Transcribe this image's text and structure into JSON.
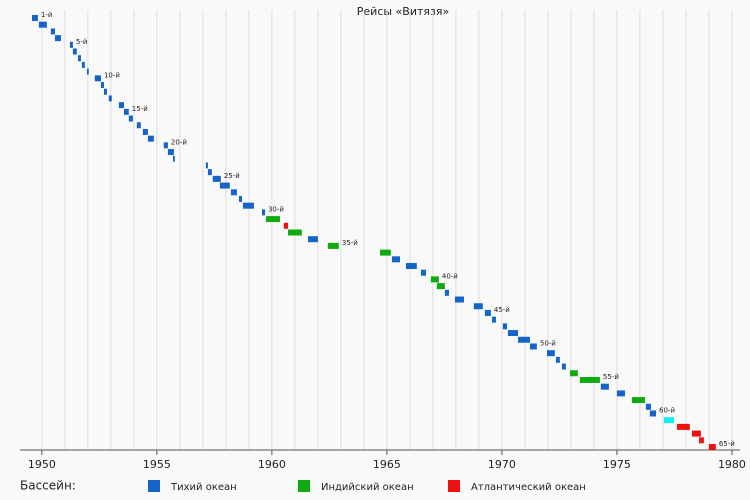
{
  "chart_data": {
    "type": "timeline",
    "title": "Рейсы «Витязя»",
    "categories": [
      "1-й",
      null,
      null,
      null,
      "5-й",
      null,
      null,
      null,
      null,
      "10-й",
      null,
      null,
      null,
      null,
      "15-й",
      null,
      null,
      null,
      null,
      "20-й",
      null,
      null,
      null,
      null,
      "25-й",
      null,
      null,
      null,
      null,
      "30-й",
      null,
      null,
      null,
      null,
      "35-й",
      null,
      null,
      null,
      null,
      "40-й",
      null,
      null,
      null,
      null,
      "45-й",
      null,
      null,
      null,
      null,
      "50-й",
      null,
      null,
      null,
      null,
      "55-й",
      null,
      null,
      null,
      null,
      "60-й",
      null,
      null,
      null,
      null,
      "65-й"
    ],
    "start": [
      1949.57,
      1949.87,
      1950.39,
      1950.57,
      1951.22,
      1951.35,
      1951.57,
      1951.74,
      1951.96,
      1952.3,
      1952.57,
      1952.7,
      1952.91,
      1953.35,
      1953.57,
      1953.78,
      1954.13,
      1954.39,
      1954.61,
      1955.3,
      1955.48,
      1955.7,
      1957.13,
      1957.22,
      1957.43,
      1957.74,
      1958.22,
      1958.57,
      1958.74,
      1959.57,
      1959.74,
      1960.52,
      1960.7,
      1961.57,
      1962.43,
      1964.7,
      1965.22,
      1965.83,
      1966.48,
      1966.91,
      1967.17,
      1967.52,
      1967.96,
      1968.78,
      1969.26,
      1969.57,
      1970.04,
      1970.26,
      1970.7,
      1971.22,
      1971.96,
      1972.35,
      1972.61,
      1972.96,
      1973.39,
      1974.3,
      1975.0,
      1975.65,
      1976.26,
      1976.43,
      1977.04,
      1977.61,
      1978.26,
      1978.57,
      1979.0
    ],
    "end": [
      1949.83,
      1950.22,
      1950.57,
      1950.83,
      1951.35,
      1951.52,
      1951.7,
      1951.87,
      1952.04,
      1952.57,
      1952.7,
      1952.83,
      1953.04,
      1953.57,
      1953.78,
      1953.96,
      1954.3,
      1954.61,
      1954.87,
      1955.48,
      1955.74,
      1955.78,
      1957.22,
      1957.39,
      1957.78,
      1958.17,
      1958.48,
      1958.7,
      1959.22,
      1959.7,
      1960.35,
      1960.7,
      1961.3,
      1962.0,
      1962.91,
      1965.17,
      1965.57,
      1966.3,
      1966.7,
      1967.26,
      1967.52,
      1967.7,
      1968.35,
      1969.17,
      1969.52,
      1969.74,
      1970.22,
      1970.7,
      1971.22,
      1971.52,
      1972.3,
      1972.52,
      1972.78,
      1973.3,
      1974.26,
      1974.65,
      1975.35,
      1976.22,
      1976.48,
      1976.7,
      1977.48,
      1978.17,
      1978.65,
      1978.78,
      1979.3
    ],
    "colors": [
      "#1565c8",
      "#1565c8",
      "#1565c8",
      "#1565c8",
      "#1565c8",
      "#1565c8",
      "#1565c8",
      "#1565c8",
      "#1565c8",
      "#1565c8",
      "#1565c8",
      "#1565c8",
      "#1565c8",
      "#1565c8",
      "#1565c8",
      "#1565c8",
      "#1565c8",
      "#1565c8",
      "#1565c8",
      "#1565c8",
      "#1565c8",
      "#1565c8",
      "#1565c8",
      "#1565c8",
      "#1565c8",
      "#1565c8",
      "#1565c8",
      "#1565c8",
      "#1565c8",
      "#1565c8",
      "#11aa11",
      "#ee1111",
      "#11aa11",
      "#1565c8",
      "#11aa11",
      "#11aa11",
      "#1565c8",
      "#1565c8",
      "#1565c8",
      "#11aa11",
      "#11aa11",
      "#1565c8",
      "#1565c8",
      "#1565c8",
      "#1565c8",
      "#1565c8",
      "#1565c8",
      "#1565c8",
      "#1565c8",
      "#1565c8",
      "#1565c8",
      "#1565c8",
      "#1565c8",
      "#11aa11",
      "#11aa11",
      "#1565c8",
      "#1565c8",
      "#11aa11",
      "#1565c8",
      "#1565c8",
      "#11eeee",
      "#ee1111",
      "#ee1111",
      "#ee1111",
      "#ee1111"
    ],
    "xlim": [
      1949.05,
      1980.35
    ],
    "xticks": [
      1950,
      1955,
      1960,
      1965,
      1970,
      1975,
      1980
    ],
    "xminorticks": [
      1950,
      1951,
      1952,
      1953,
      1954,
      1955,
      1956,
      1957,
      1958,
      1959,
      1960,
      1961,
      1962,
      1963,
      1964,
      1965,
      1966,
      1967,
      1968,
      1969,
      1970,
      1971,
      1972,
      1973,
      1974,
      1975,
      1976,
      1977,
      1978,
      1979,
      1980
    ],
    "legend": {
      "title": "Бассейн:",
      "items": [
        {
          "name": "Тихий океан",
          "color": "#1565c8"
        },
        {
          "name": "Индийский океан",
          "color": "#11aa11"
        },
        {
          "name": "Атлантический океан",
          "color": "#ee1111"
        }
      ]
    }
  }
}
